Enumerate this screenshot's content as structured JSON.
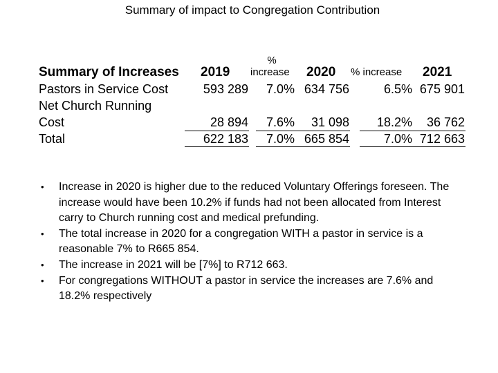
{
  "title": "Summary of impact to Congregation Contribution",
  "table": {
    "header": {
      "label": "Summary of Increases",
      "y2019": "2019",
      "pct1_top": "%",
      "pct1_bottom": "increase",
      "y2020": "2020",
      "pct2": "% increase",
      "y2021": "2021"
    },
    "rows": [
      {
        "label": "Pastors in Service Cost",
        "v2019": "593 289",
        "p2020": "7.0%",
        "v2020": "634 756",
        "p2021": "6.5%",
        "v2021": "675 901"
      },
      {
        "label_line1": "Net Church Running",
        "label_line2": "Cost",
        "v2019": "28 894",
        "p2020": "7.6%",
        "v2020": "31 098",
        "p2021": "18.2%",
        "v2021": "36 762"
      },
      {
        "label": "Total",
        "v2019": "622 183",
        "p2020": "7.0%",
        "v2020": "665 854",
        "p2021": "7.0%",
        "v2021": "712 663"
      }
    ]
  },
  "notes": [
    "Increase in 2020 is higher due to the reduced Voluntary Offerings foreseen. The increase would have been 10.2% if funds had not been allocated from Interest carry to Church running cost and medical prefunding.",
    "The total increase in 2020 for a congregation WITH a pastor in service is a reasonable 7% to R665 854.",
    "The increase in 2021 will be  [7%] to R712 663.",
    "For congregations WITHOUT a pastor in service the increases are 7.6% and 18.2% respectively"
  ]
}
